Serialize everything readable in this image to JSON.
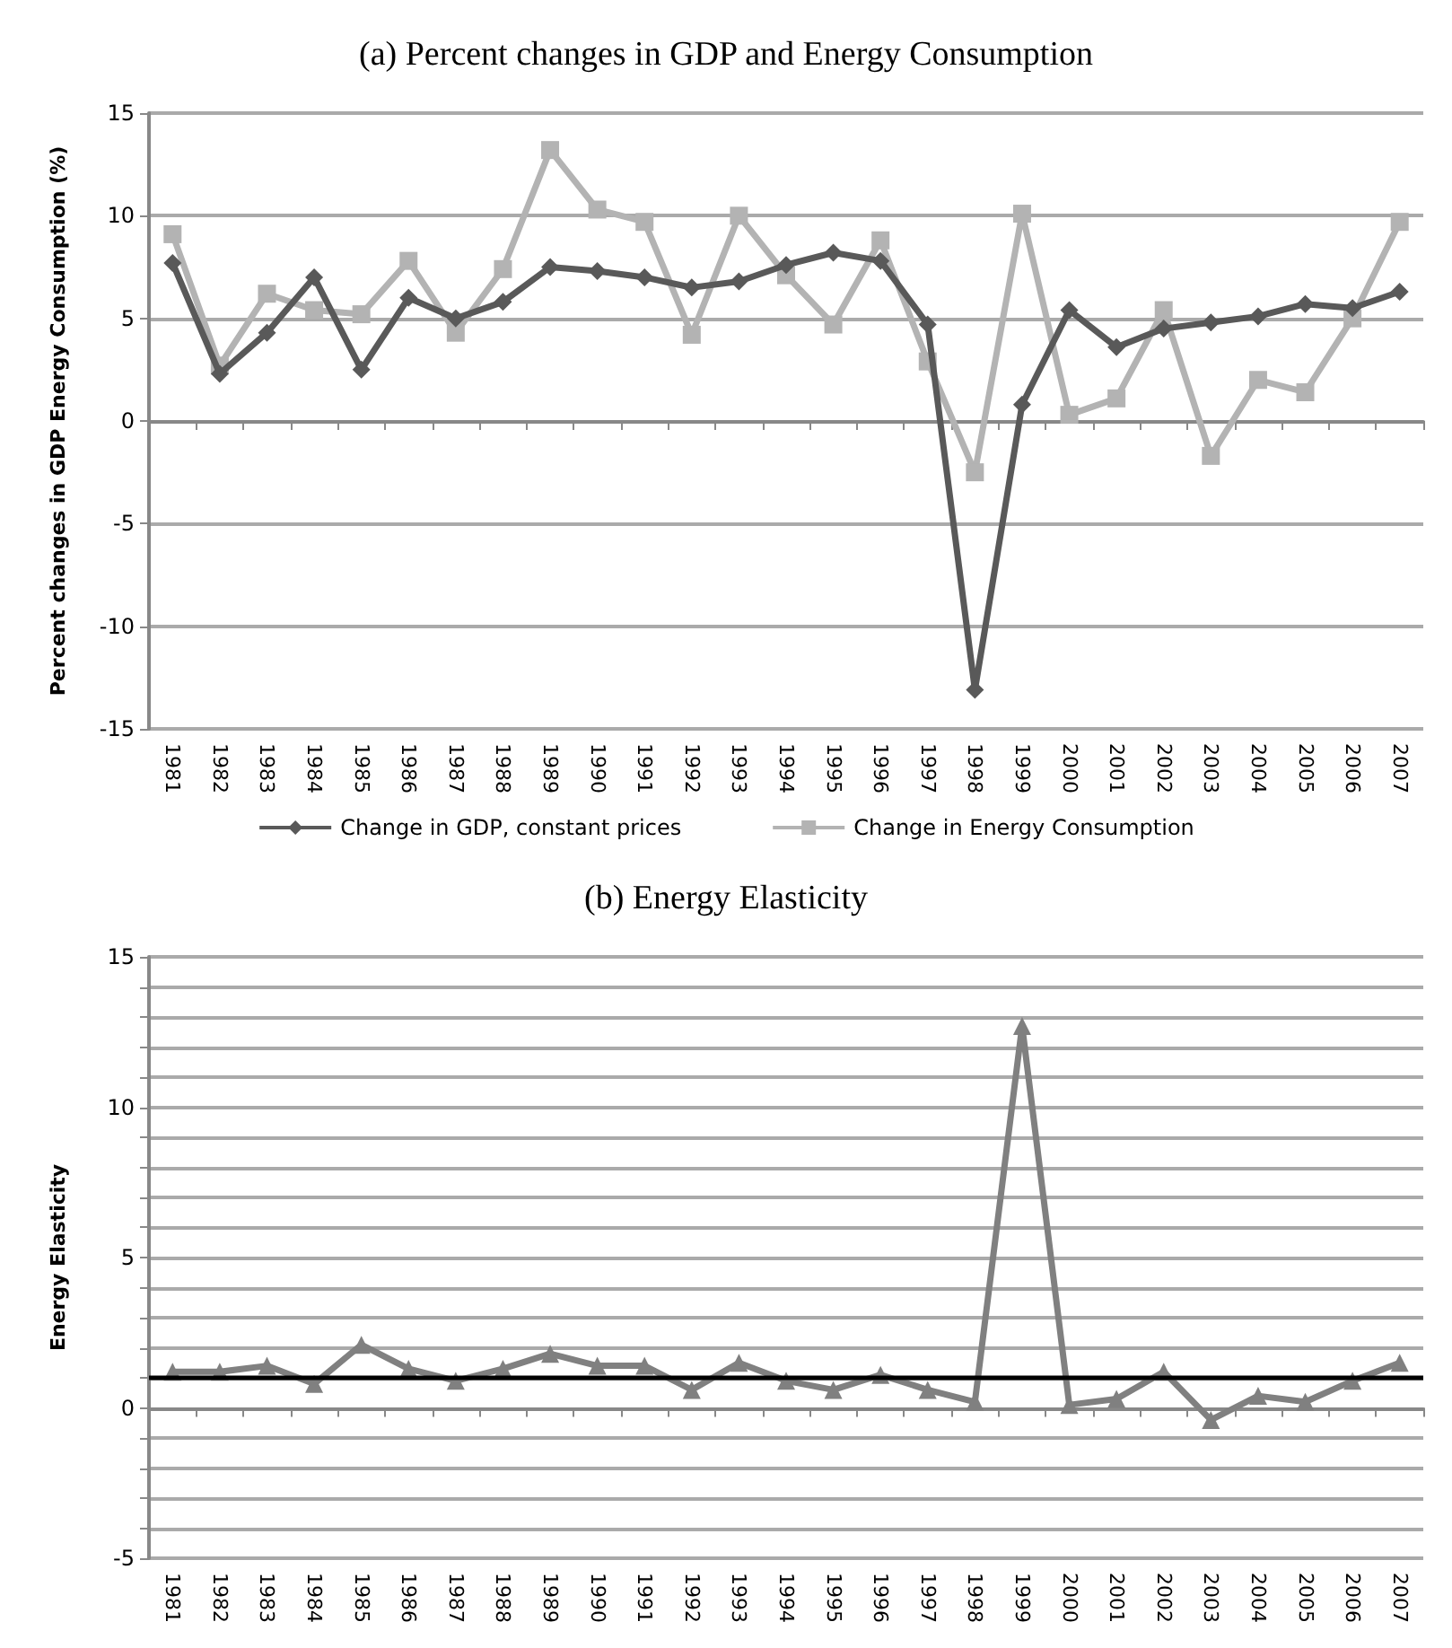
{
  "chart_data": [
    {
      "type": "line",
      "title": "(a) Percent changes in GDP and Energy Consumption",
      "ylabel": "Percent changes in GDP Energy Consumption (%)",
      "categories": [
        "1981",
        "1982",
        "1983",
        "1984",
        "1985",
        "1986",
        "1987",
        "1988",
        "1989",
        "1990",
        "1991",
        "1992",
        "1993",
        "1994",
        "1995",
        "1996",
        "1997",
        "1998",
        "1999",
        "2000",
        "2001",
        "2002",
        "2003",
        "2004",
        "2005",
        "2006",
        "2007"
      ],
      "series": [
        {
          "name": "Change in GDP, constant prices",
          "color": "#595959",
          "marker": "diamond",
          "values": [
            7.7,
            2.3,
            4.3,
            7.0,
            2.5,
            6.0,
            5.0,
            5.8,
            7.5,
            7.3,
            7.0,
            6.5,
            6.8,
            7.6,
            8.2,
            7.8,
            4.7,
            -13.1,
            0.8,
            5.4,
            3.6,
            4.5,
            4.8,
            5.1,
            5.7,
            5.5,
            6.3
          ]
        },
        {
          "name": "Change in Energy Consumption",
          "color": "#b3b3b3",
          "marker": "square",
          "values": [
            9.1,
            2.7,
            6.2,
            5.4,
            5.2,
            7.8,
            4.3,
            7.4,
            13.2,
            10.3,
            9.7,
            4.2,
            10.0,
            7.1,
            4.7,
            8.8,
            2.9,
            -2.5,
            10.1,
            0.3,
            1.1,
            5.4,
            -1.7,
            2.0,
            1.4,
            5.0,
            9.7
          ]
        }
      ],
      "ylim": [
        -15,
        15
      ],
      "yticks": [
        -15,
        -10,
        -5,
        0,
        5,
        10,
        15
      ],
      "grid": "y",
      "legend": "bottom"
    },
    {
      "type": "line",
      "title": "(b) Energy Elasticity",
      "ylabel": "Energy Elasticity",
      "categories": [
        "1981",
        "1982",
        "1983",
        "1984",
        "1985",
        "1986",
        "1987",
        "1988",
        "1989",
        "1990",
        "1991",
        "1992",
        "1993",
        "1994",
        "1995",
        "1996",
        "1997",
        "1998",
        "1999",
        "2000",
        "2001",
        "2002",
        "2003",
        "2004",
        "2005",
        "2006",
        "2007"
      ],
      "series": [
        {
          "color": "#808080",
          "marker": "triangle",
          "values": [
            1.2,
            1.2,
            1.4,
            0.8,
            2.1,
            1.3,
            0.9,
            1.3,
            1.8,
            1.4,
            1.4,
            0.6,
            1.5,
            0.9,
            0.6,
            1.1,
            0.6,
            0.2,
            12.7,
            0.1,
            0.3,
            1.2,
            -0.4,
            0.4,
            0.2,
            0.9,
            1.5
          ]
        }
      ],
      "ylim": [
        -5,
        15
      ],
      "yticks": [
        -5,
        {
          "value": -4,
          "label": null
        },
        {
          "value": -3,
          "label": null
        },
        {
          "value": -2,
          "label": null
        },
        {
          "value": -1,
          "label": null
        },
        0,
        {
          "value": 1,
          "label": null
        },
        {
          "value": 2,
          "label": null
        },
        {
          "value": 3,
          "label": null
        },
        {
          "value": 4,
          "label": null
        },
        5,
        {
          "value": 6,
          "label": null
        },
        {
          "value": 7,
          "label": null
        },
        {
          "value": 8,
          "label": null
        },
        {
          "value": 9,
          "label": null
        },
        10,
        {
          "value": 11,
          "label": null
        },
        {
          "value": 12,
          "label": null
        },
        {
          "value": 13,
          "label": null
        },
        {
          "value": 14,
          "label": null
        },
        15
      ],
      "grid": "y",
      "ref_lines": [
        {
          "axis": "y",
          "value": 1,
          "color": "#000000"
        }
      ]
    }
  ]
}
